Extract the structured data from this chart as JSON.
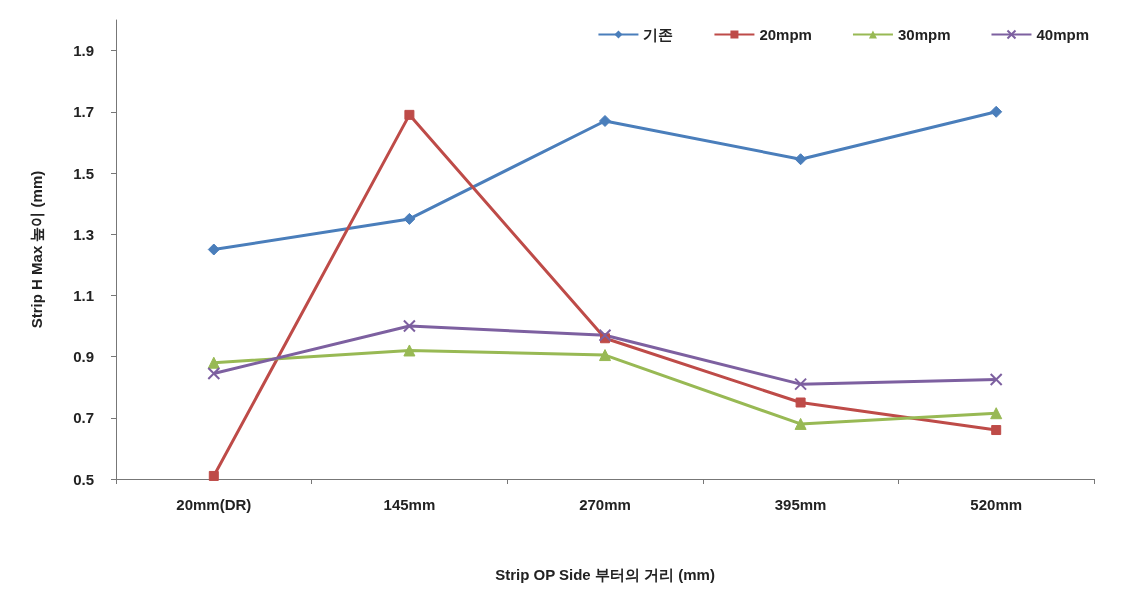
{
  "chart_data": {
    "type": "line",
    "xlabel": "Strip OP Side 부터의 거리 (mm)",
    "ylabel": "Strip H Max 높이 (mm)",
    "categories": [
      "20mm(DR)",
      "145mm",
      "270mm",
      "395mm",
      "520mm"
    ],
    "series": [
      {
        "name": "기존",
        "color": "#4a7ebb",
        "marker": "diamond",
        "values": [
          1.25,
          1.35,
          1.67,
          1.545,
          1.7
        ]
      },
      {
        "name": "20mpm",
        "color": "#be4b48",
        "marker": "square",
        "values": [
          0.51,
          1.69,
          0.96,
          0.75,
          0.66
        ]
      },
      {
        "name": "30mpm",
        "color": "#98b954",
        "marker": "triangle",
        "values": [
          0.88,
          0.92,
          0.905,
          0.68,
          0.715
        ]
      },
      {
        "name": "40mpm",
        "color": "#7d60a0",
        "marker": "cross",
        "values": [
          0.845,
          1.0,
          0.97,
          0.81,
          0.825
        ]
      }
    ],
    "ylim": [
      0.5,
      2.0
    ],
    "yticks": [
      0.5,
      0.7,
      0.9,
      1.1,
      1.3,
      1.5,
      1.7,
      1.9
    ],
    "grid": false,
    "legend": "top right"
  }
}
